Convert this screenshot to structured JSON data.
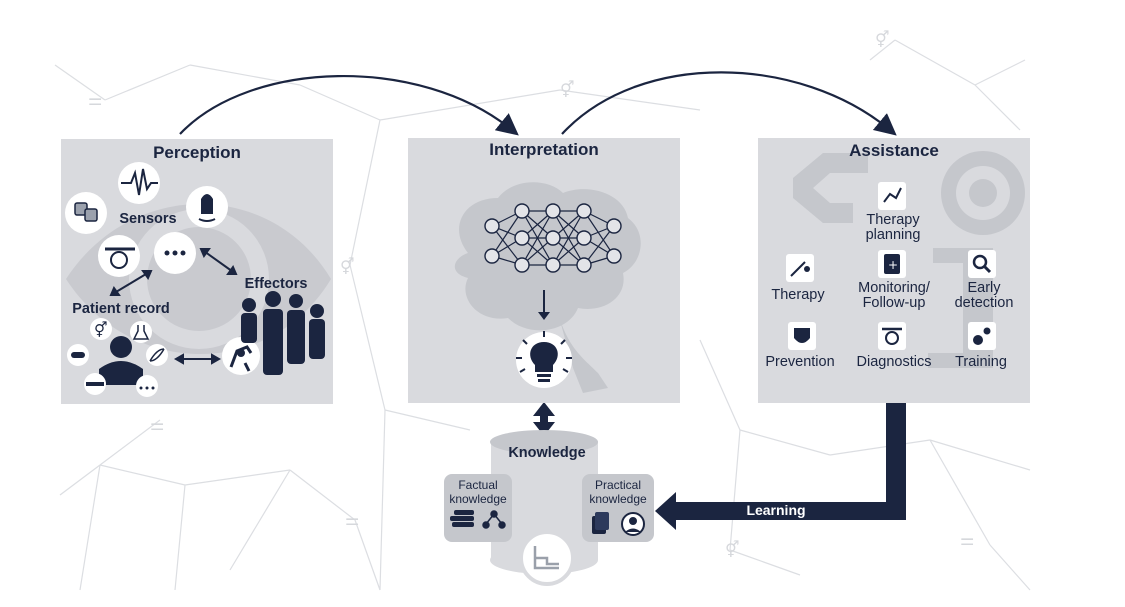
{
  "perception": {
    "title": "Perception",
    "sensors": "Sensors",
    "effectors": "Effectors",
    "patient_record": "Patient record",
    "more_glyph": "…"
  },
  "interpretation": {
    "title": "Interpretation"
  },
  "assistance": {
    "title": "Assistance",
    "items": {
      "therapy_planning": [
        "Therapy",
        "planning"
      ],
      "therapy": "Therapy",
      "monitoring": [
        "Monitoring/",
        "Follow-up"
      ],
      "early_detection": [
        "Early",
        "detection"
      ],
      "prevention": "Prevention",
      "diagnostics": "Diagnostics",
      "training": "Training"
    }
  },
  "knowledge": {
    "title": "Knowledge",
    "factual": [
      "Factual",
      "knowledge"
    ],
    "practical": [
      "Practical",
      "knowledge"
    ]
  },
  "learning": {
    "label": "Learning"
  },
  "colors": {
    "navy": "#1b2540",
    "panel": "#d9dade",
    "bg_network": "#d6d8dc"
  }
}
